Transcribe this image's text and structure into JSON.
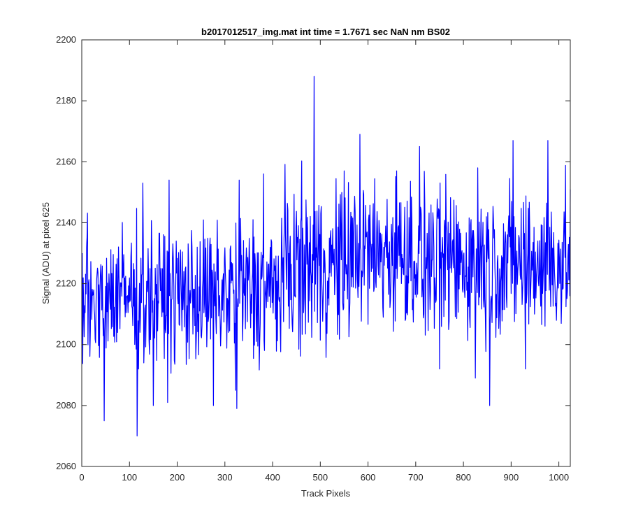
{
  "chart_data": {
    "type": "line",
    "title": "b2017012517_img.mat int time = 1.7671 sec  NaN nm BS02",
    "xlabel": "Track Pixels",
    "ylabel": "Signal (ADU) at pixel 625",
    "xlim": [
      0,
      1024
    ],
    "ylim": [
      2060,
      2200
    ],
    "xticks": [
      0,
      100,
      200,
      300,
      400,
      500,
      600,
      700,
      800,
      900,
      1000
    ],
    "yticks": [
      2060,
      2080,
      2100,
      2120,
      2140,
      2160,
      2180,
      2200
    ],
    "grid": false,
    "box": true,
    "series": [
      {
        "color": "#0000ff",
        "n_points": 1024,
        "x_start": 1,
        "segments": [
          {
            "x": [
              1,
              300
            ],
            "mean": 2116,
            "amplitude": 11
          },
          {
            "x": [
              300,
              420
            ],
            "mean": 2118,
            "amplitude": 12
          },
          {
            "x": [
              420,
              560
            ],
            "mean": 2126,
            "amplitude": 13
          },
          {
            "x": [
              560,
              700
            ],
            "mean": 2130,
            "amplitude": 12
          },
          {
            "x": [
              700,
              1024
            ],
            "mean": 2127,
            "amplitude": 12
          }
        ],
        "extremes": [
          {
            "x": 487,
            "y": 2188
          },
          {
            "x": 583,
            "y": 2169
          },
          {
            "x": 904,
            "y": 2167
          },
          {
            "x": 977,
            "y": 2167
          },
          {
            "x": 708,
            "y": 2165
          },
          {
            "x": 116,
            "y": 2070
          },
          {
            "x": 47,
            "y": 2075
          },
          {
            "x": 855,
            "y": 2080
          },
          {
            "x": 325,
            "y": 2079
          },
          {
            "x": 276,
            "y": 2080
          },
          {
            "x": 150,
            "y": 2080
          },
          {
            "x": 180,
            "y": 2081
          },
          {
            "x": 322,
            "y": 2085
          },
          {
            "x": 825,
            "y": 2089
          },
          {
            "x": 750,
            "y": 2092
          },
          {
            "x": 930,
            "y": 2092
          },
          {
            "x": 128,
            "y": 2153
          },
          {
            "x": 183,
            "y": 2154
          },
          {
            "x": 330,
            "y": 2154
          },
          {
            "x": 381,
            "y": 2156
          },
          {
            "x": 550,
            "y": 2157
          },
          {
            "x": 660,
            "y": 2157
          },
          {
            "x": 830,
            "y": 2158
          }
        ]
      }
    ]
  }
}
